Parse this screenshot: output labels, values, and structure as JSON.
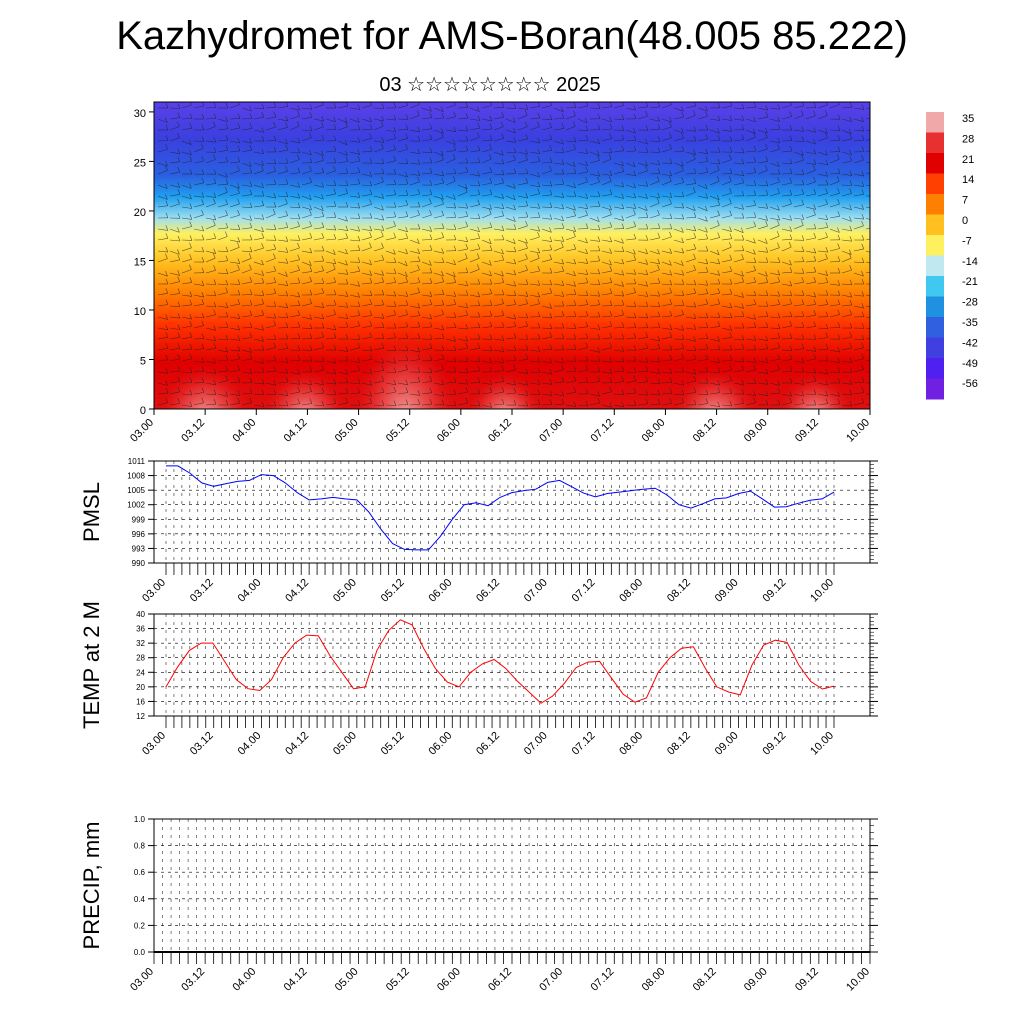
{
  "title": "Kazhydromet for AMS-Boran(48.005 85.222)",
  "subtitle": "03 ☆☆☆☆☆☆☆☆ 2025",
  "chart_data": [
    {
      "type": "heatmap",
      "x_tick_labels": [
        "03.00",
        "03.12",
        "04.00",
        "04.12",
        "05.00",
        "05.12",
        "06.00",
        "06.12",
        "07.00",
        "07.12",
        "08.00",
        "08.12",
        "09.00",
        "09.12",
        "10.00"
      ],
      "y_tick_labels": [
        "0",
        "5",
        "10",
        "15",
        "20",
        "25",
        "30"
      ],
      "ylim": [
        0,
        31
      ],
      "colorbar_labels": [
        "35",
        "28",
        "21",
        "14",
        "7",
        "0",
        "-7",
        "-14",
        "-21",
        "-28",
        "-35",
        "-42",
        "-49",
        "-56"
      ],
      "colormap": [
        "#f0a8a8",
        "#e83030",
        "#e00000",
        "#ff4000",
        "#ff8000",
        "#ffc020",
        "#fff060",
        "#c0e8f0",
        "#40c8f0",
        "#2090e0",
        "#3060e0",
        "#4040e0",
        "#5020f0",
        "#7020e0"
      ],
      "overlay": "wind barbs"
    },
    {
      "type": "line",
      "ylabel": "PMSL",
      "ylim": [
        990,
        1011
      ],
      "y_tick_labels": [
        "1011",
        "1008",
        "1005",
        "1002",
        "999",
        "996",
        "993",
        "990"
      ],
      "x_tick_labels": [
        "03.00",
        "03.12",
        "04.00",
        "04.12",
        "05.00",
        "05.12",
        "06.00",
        "06.12",
        "07.00",
        "07.12",
        "08.00",
        "08.12",
        "09.00",
        "09.12",
        "10.00"
      ],
      "color": "#0000ff",
      "series": [
        {
          "values": [
            1010,
            1010,
            1008.5,
            1006.5,
            1005.8,
            1006.3,
            1006.8,
            1007,
            1008.2,
            1008,
            1006.5,
            1004.5,
            1003,
            1003.2,
            1003.5,
            1003.2,
            1003,
            1000.5,
            997,
            994,
            992.8,
            992.7,
            992.7,
            995.5,
            999,
            1002,
            1002.4,
            1001.8,
            1003.5,
            1004.5,
            1004.9,
            1005.2,
            1006.6,
            1007,
            1005.7,
            1004.4,
            1003.6,
            1004.3,
            1004.6,
            1004.9,
            1005.2,
            1005.4,
            1004,
            1002,
            1001.3,
            1002.2,
            1003.2,
            1003.4,
            1004.3,
            1004.8,
            1003.2,
            1001.5,
            1001.6,
            1002.3,
            1002.9,
            1003.2,
            1004.6
          ]
        }
      ]
    },
    {
      "type": "line",
      "ylabel": "TEMP at 2 M",
      "ylim": [
        12,
        40
      ],
      "y_tick_labels": [
        "40",
        "36",
        "32",
        "28",
        "24",
        "20",
        "16",
        "12"
      ],
      "x_tick_labels": [
        "03.00",
        "03.12",
        "04.00",
        "04.12",
        "05.00",
        "05.12",
        "06.00",
        "06.12",
        "07.00",
        "07.12",
        "08.00",
        "08.12",
        "09.00",
        "09.12",
        "10.00"
      ],
      "color": "#ff0000",
      "series": [
        {
          "values": [
            20,
            25.5,
            30,
            32,
            32,
            27,
            22,
            19.5,
            19,
            22,
            28,
            32,
            34.2,
            34,
            28.5,
            24,
            19.5,
            20,
            30,
            35.5,
            38.4,
            37,
            30.5,
            25,
            21.3,
            20,
            24,
            26.3,
            27.5,
            25,
            21.5,
            18.5,
            15.5,
            17.5,
            21,
            25.3,
            26.8,
            27,
            22.5,
            18,
            15.8,
            17,
            24,
            28,
            30.6,
            31,
            25.2,
            20,
            18.6,
            17.8,
            26,
            31.5,
            32.8,
            32.2,
            26,
            21.5,
            19.4,
            20.2
          ]
        }
      ]
    },
    {
      "type": "line",
      "ylabel": "PRECIP, mm",
      "ylim": [
        0,
        1
      ],
      "y_tick_labels": [
        "1.0",
        "0.8",
        "0.6",
        "0.4",
        "0.2",
        "0.0"
      ],
      "x_tick_labels": [
        "03.00",
        "03.12",
        "04.00",
        "04.12",
        "05.00",
        "05.12",
        "06.00",
        "06.12",
        "07.00",
        "07.12",
        "08.00",
        "08.12",
        "09.00",
        "09.12",
        "10.00"
      ],
      "color": "#000000",
      "series": [
        {
          "values": [
            0,
            0,
            0,
            0,
            0,
            0,
            0,
            0,
            0,
            0,
            0,
            0,
            0,
            0,
            0
          ]
        }
      ]
    }
  ]
}
